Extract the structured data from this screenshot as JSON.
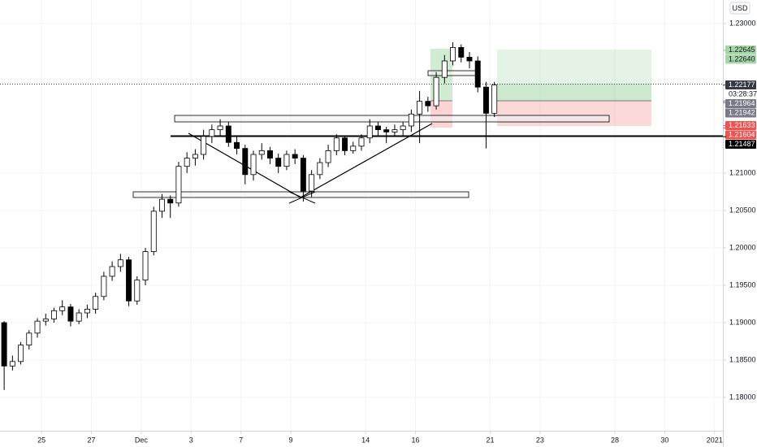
{
  "chart_data": {
    "type": "candlestick",
    "currency": "USD",
    "up_color": "#ffffff",
    "down_color": "#000000",
    "wick_color": "#000000",
    "xlim": [
      -0.5,
      86.5
    ],
    "xticks": [
      {
        "value": 4.5,
        "label": "25"
      },
      {
        "value": 10.5,
        "label": "27"
      },
      {
        "value": 16.5,
        "label": "Dec"
      },
      {
        "value": 22.5,
        "label": "3"
      },
      {
        "value": 28.5,
        "label": "7"
      },
      {
        "value": 34.5,
        "label": "9"
      },
      {
        "value": 43.5,
        "label": "14"
      },
      {
        "value": 49.5,
        "label": "16"
      },
      {
        "value": 58.5,
        "label": "21"
      },
      {
        "value": 64.5,
        "label": "23"
      },
      {
        "value": 73.5,
        "label": "28"
      },
      {
        "value": 79.5,
        "label": "30"
      },
      {
        "value": 85.5,
        "label": "2021"
      }
    ],
    "ylim": [
      1.17554,
      1.23315
    ],
    "yticks": [
      {
        "value": 1.23,
        "label": "1.23000"
      },
      {
        "value": 1.21,
        "label": "1.21000"
      },
      {
        "value": 1.205,
        "label": "1.20500"
      },
      {
        "value": 1.2,
        "label": "1.20000"
      },
      {
        "value": 1.195,
        "label": "1.19500"
      },
      {
        "value": 1.19,
        "label": "1.19000"
      },
      {
        "value": 1.185,
        "label": "1.18500"
      },
      {
        "value": 1.18,
        "label": "1.18000"
      }
    ],
    "price_tags": [
      {
        "value": 1.22645,
        "color": "#a5d6a7",
        "text_color": "#131722"
      },
      {
        "value": 1.2264,
        "label": "1.22640",
        "color": "#a5d6a7",
        "text_color": "#131722"
      },
      {
        "value": 1.22177,
        "color": "#363a45",
        "text_color": "#ffffff",
        "countdown": "03:28:37"
      },
      {
        "value": 1.21964,
        "color": "#787b86",
        "text_color": "#ffffff"
      },
      {
        "value": 1.21942,
        "color": "#787b86",
        "text_color": "#ffffff"
      },
      {
        "value": 1.21633,
        "color": "#ef5350",
        "text_color": "#ffffff"
      },
      {
        "value": 1.21604,
        "color": "#ef5350",
        "text_color": "#ffffff"
      },
      {
        "value": 1.21487,
        "color": "#000000",
        "text_color": "#ffffff"
      }
    ],
    "ohlc": [
      [
        1.19,
        1.1902,
        1.181,
        1.1842
      ],
      [
        1.1842,
        1.1856,
        1.1836,
        1.1848
      ],
      [
        1.1848,
        1.1874,
        1.1844,
        1.187
      ],
      [
        1.187,
        1.189,
        1.1864,
        1.1886
      ],
      [
        1.1886,
        1.1906,
        1.188,
        1.1902
      ],
      [
        1.1902,
        1.1912,
        1.1896,
        1.1905
      ],
      [
        1.1905,
        1.192,
        1.19,
        1.1916
      ],
      [
        1.1916,
        1.193,
        1.191,
        1.1921
      ],
      [
        1.1921,
        1.1925,
        1.1895,
        1.1902
      ],
      [
        1.1902,
        1.1918,
        1.1898,
        1.1913
      ],
      [
        1.1913,
        1.1924,
        1.1906,
        1.1918
      ],
      [
        1.1918,
        1.194,
        1.1912,
        1.1935
      ],
      [
        1.1935,
        1.1968,
        1.193,
        1.1962
      ],
      [
        1.1962,
        1.1982,
        1.1956,
        1.1975
      ],
      [
        1.1975,
        1.1992,
        1.1968,
        1.1984
      ],
      [
        1.1984,
        1.1988,
        1.1922,
        1.1929
      ],
      [
        1.1929,
        1.1962,
        1.1924,
        1.1957
      ],
      [
        1.1957,
        1.2,
        1.195,
        1.1995
      ],
      [
        1.1995,
        1.2055,
        1.199,
        1.2049
      ],
      [
        1.2049,
        1.2072,
        1.204,
        1.2065
      ],
      [
        1.2065,
        1.207,
        1.204,
        1.206
      ],
      [
        1.206,
        1.2115,
        1.2055,
        1.2109
      ],
      [
        1.2109,
        1.2128,
        1.21,
        1.212
      ],
      [
        1.212,
        1.2132,
        1.211,
        1.2125
      ],
      [
        1.2125,
        1.2158,
        1.2118,
        1.2149
      ],
      [
        1.2149,
        1.2165,
        1.214,
        1.2158
      ],
      [
        1.2158,
        1.2172,
        1.215,
        1.2163
      ],
      [
        1.2163,
        1.2168,
        1.2135,
        1.2141
      ],
      [
        1.2141,
        1.215,
        1.2125,
        1.2133
      ],
      [
        1.2133,
        1.2138,
        1.2085,
        1.2098
      ],
      [
        1.2098,
        1.213,
        1.209,
        1.2125
      ],
      [
        1.2125,
        1.214,
        1.2118,
        1.213
      ],
      [
        1.213,
        1.2135,
        1.2112,
        1.212
      ],
      [
        1.212,
        1.2126,
        1.21,
        1.2109
      ],
      [
        1.2109,
        1.213,
        1.2104,
        1.2125
      ],
      [
        1.2125,
        1.2132,
        1.2112,
        1.212
      ],
      [
        1.212,
        1.2124,
        1.2062,
        1.2076
      ],
      [
        1.2076,
        1.2104,
        1.2068,
        1.2098
      ],
      [
        1.2098,
        1.212,
        1.2092,
        1.2114
      ],
      [
        1.2114,
        1.2138,
        1.2108,
        1.213
      ],
      [
        1.213,
        1.2152,
        1.2124,
        1.2147
      ],
      [
        1.2147,
        1.215,
        1.2124,
        1.213
      ],
      [
        1.213,
        1.2142,
        1.2126,
        1.2136
      ],
      [
        1.2136,
        1.2152,
        1.213,
        1.2147
      ],
      [
        1.2147,
        1.2172,
        1.214,
        1.2163
      ],
      [
        1.2163,
        1.2168,
        1.215,
        1.2158
      ],
      [
        1.2158,
        1.2162,
        1.214,
        1.2155
      ],
      [
        1.2155,
        1.2165,
        1.215,
        1.2158
      ],
      [
        1.2158,
        1.2168,
        1.215,
        1.2163
      ],
      [
        1.2163,
        1.2185,
        1.2155,
        1.2179
      ],
      [
        1.2179,
        1.221,
        1.214,
        1.2196
      ],
      [
        1.2196,
        1.2202,
        1.2182,
        1.219
      ],
      [
        1.219,
        1.2235,
        1.2185,
        1.2228
      ],
      [
        1.2228,
        1.2258,
        1.222,
        1.225
      ],
      [
        1.225,
        1.2275,
        1.2244,
        1.2268
      ],
      [
        1.2268,
        1.2272,
        1.2248,
        1.2255
      ],
      [
        1.2255,
        1.2262,
        1.224,
        1.225
      ],
      [
        1.225,
        1.2256,
        1.2208,
        1.2215
      ],
      [
        1.2215,
        1.2222,
        1.2133,
        1.218
      ],
      [
        1.218,
        1.2222,
        1.2175,
        1.2218
      ]
    ]
  }
}
